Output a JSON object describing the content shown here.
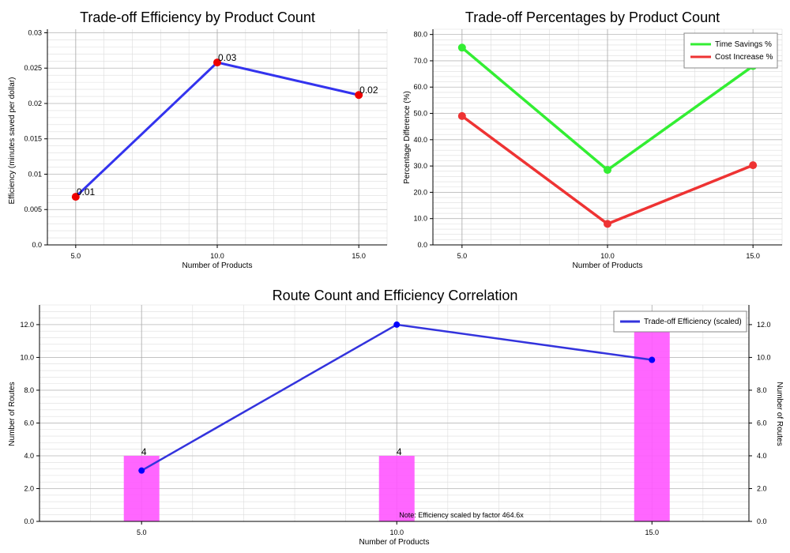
{
  "colors": {
    "efficiency_line": "#3333ee",
    "marker_red": "#ee0000",
    "time_savings": "#33ee33",
    "cost_increase": "#ee3333",
    "bars": "#ff55ff",
    "bottom_line": "#3333dd",
    "bottom_marker": "#0000ff"
  },
  "chart_data": [
    {
      "type": "line",
      "title": "Trade-off Efficiency by Product Count",
      "xlabel": "Number of Products",
      "ylabel": "Efficiency (minutes saved per dollar)",
      "x": [
        5,
        10,
        15
      ],
      "xticks": [
        "5.0",
        "10.0",
        "15.0"
      ],
      "yticks": [
        "0.0",
        "0.005",
        "0.01",
        "0.015",
        "0.02",
        "0.025",
        "0.03"
      ],
      "ylim": [
        0,
        0.0305
      ],
      "series": [
        {
          "values": [
            0.0068,
            0.0258,
            0.0212
          ],
          "labels": [
            "0.01",
            "0.03",
            "0.02"
          ]
        }
      ],
      "grid": true
    },
    {
      "type": "line",
      "title": "Trade-off Percentages by Product Count",
      "xlabel": "Number of Products",
      "ylabel": "Percentage Difference (%)",
      "x": [
        5,
        10,
        15
      ],
      "xticks": [
        "5.0",
        "10.0",
        "15.0"
      ],
      "yticks": [
        "0.0",
        "10.0",
        "20.0",
        "30.0",
        "40.0",
        "50.0",
        "60.0",
        "70.0",
        "80.0"
      ],
      "ylim": [
        0,
        82
      ],
      "legend": "top-right",
      "series": [
        {
          "name": "Time Savings %",
          "values": [
            75,
            28.5,
            68
          ]
        },
        {
          "name": "Cost Increase %",
          "values": [
            49,
            8,
            30.3
          ]
        }
      ],
      "grid": true
    },
    {
      "type": "bar",
      "title": "Route Count and Efficiency Correlation",
      "xlabel": "Number of Products",
      "ylabel": "Number of Routes",
      "ylabel_right": "Number of Routes",
      "x": [
        5,
        10,
        15
      ],
      "xticks": [
        "5.0",
        "10.0",
        "15.0"
      ],
      "yticks": [
        "0.0",
        "2.0",
        "4.0",
        "6.0",
        "8.0",
        "10.0",
        "12.0"
      ],
      "ylim": [
        0,
        13.2
      ],
      "bars": {
        "values": [
          4,
          4,
          12
        ],
        "labels": [
          "4",
          "4",
          ""
        ]
      },
      "series": [
        {
          "name": "Trade-off Efficiency (scaled)",
          "values": [
            3.1,
            12.0,
            9.85
          ]
        }
      ],
      "legend": "top-right",
      "note": "Note: Efficiency scaled by factor 464.6x",
      "grid": true
    }
  ]
}
